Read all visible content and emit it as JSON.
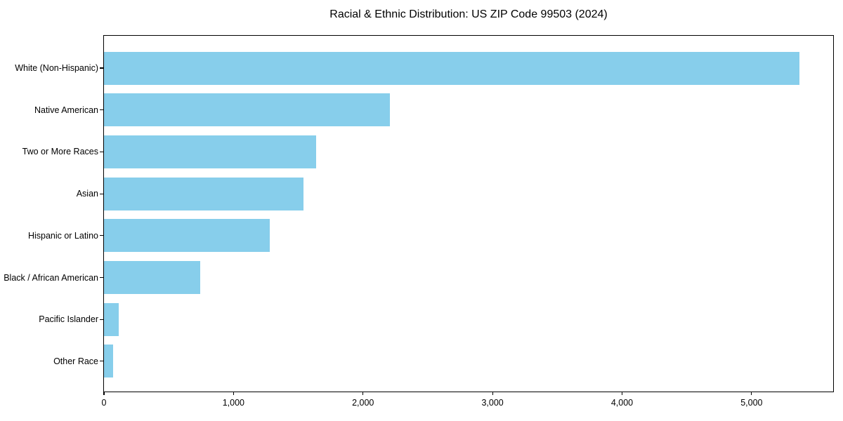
{
  "title": "Racial & Ethnic Distribution: US ZIP Code 99503 (2024)",
  "colors": {
    "bar": "#87CEEB",
    "spine": "#000000",
    "text": "#000000",
    "background": "#ffffff"
  },
  "chart_data": {
    "type": "bar",
    "orientation": "horizontal",
    "title": "Racial & Ethnic Distribution: US ZIP Code 99503 (2024)",
    "xlabel": "",
    "ylabel": "",
    "categories": [
      "White (Non-Hispanic)",
      "Native American",
      "Two or More Races",
      "Asian",
      "Hispanic or Latino",
      "Black / African American",
      "Pacific Islander",
      "Other Race"
    ],
    "values": [
      5370,
      2210,
      1640,
      1540,
      1280,
      745,
      115,
      70
    ],
    "xlim": [
      0,
      5630
    ],
    "x_ticks": [
      0,
      1000,
      2000,
      3000,
      4000,
      5000
    ],
    "x_tick_labels": [
      "0",
      "1,000",
      "2,000",
      "3,000",
      "4,000",
      "5,000"
    ],
    "grid": false,
    "legend": null,
    "bar_color": "#87CEEB"
  }
}
